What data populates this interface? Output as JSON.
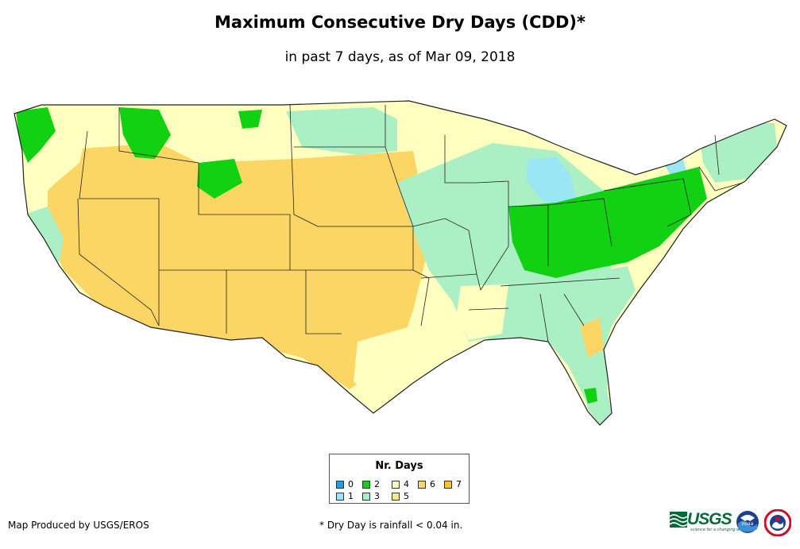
{
  "title": "Maximum Consecutive Dry Days (CDD)*",
  "subtitle": "in past 7 days, as of Mar 09, 2018",
  "legend": {
    "title": "Nr. Days",
    "items": [
      {
        "label": "0",
        "color": "#1c9ee8"
      },
      {
        "label": "1",
        "color": "#9ae6f5"
      },
      {
        "label": "2",
        "color": "#12d012"
      },
      {
        "label": "3",
        "color": "#aaf0c4"
      },
      {
        "label": "4",
        "color": "#ffffc0"
      },
      {
        "label": "5",
        "color": "#fde98a"
      },
      {
        "label": "6",
        "color": "#fcd665"
      },
      {
        "label": "7",
        "color": "#fcc12a"
      }
    ]
  },
  "footer": {
    "producer": "Map Produced by USGS/EROS",
    "note": "* Dry Day is rainfall < 0.04 in."
  },
  "logos": {
    "usgs_word": "USGS",
    "usgs_tagline": "science for a changing world",
    "noaa_word": "noaa"
  }
}
